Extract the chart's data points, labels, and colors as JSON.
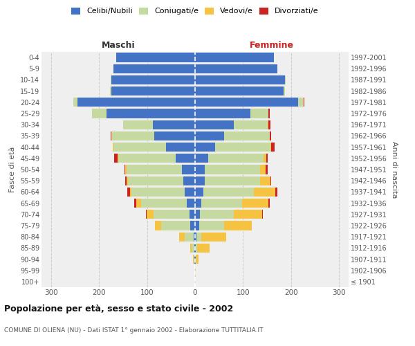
{
  "age_groups": [
    "100+",
    "95-99",
    "90-94",
    "85-89",
    "80-84",
    "75-79",
    "70-74",
    "65-69",
    "60-64",
    "55-59",
    "50-54",
    "45-49",
    "40-44",
    "35-39",
    "30-34",
    "25-29",
    "20-24",
    "15-19",
    "10-14",
    "5-9",
    "0-4"
  ],
  "birth_years": [
    "≤ 1901",
    "1902-1906",
    "1907-1911",
    "1912-1916",
    "1917-1921",
    "1922-1926",
    "1927-1931",
    "1932-1936",
    "1937-1941",
    "1942-1946",
    "1947-1951",
    "1952-1956",
    "1957-1961",
    "1962-1966",
    "1967-1971",
    "1972-1976",
    "1977-1981",
    "1982-1986",
    "1987-1991",
    "1992-1996",
    "1997-2001"
  ],
  "male_celibi": [
    0,
    0,
    1,
    2,
    3,
    10,
    12,
    18,
    22,
    25,
    28,
    40,
    60,
    85,
    88,
    185,
    245,
    175,
    175,
    170,
    165
  ],
  "male_coniugati": [
    0,
    0,
    2,
    5,
    18,
    60,
    75,
    95,
    110,
    115,
    115,
    120,
    110,
    90,
    62,
    30,
    8,
    2,
    1,
    0,
    0
  ],
  "male_vedovi": [
    0,
    0,
    1,
    3,
    12,
    14,
    14,
    9,
    4,
    3,
    2,
    2,
    1,
    0,
    0,
    0,
    0,
    0,
    0,
    0,
    0
  ],
  "male_divorziati": [
    0,
    0,
    0,
    0,
    0,
    0,
    1,
    5,
    5,
    2,
    2,
    6,
    0,
    1,
    0,
    0,
    0,
    0,
    0,
    0,
    0
  ],
  "female_celibi": [
    0,
    0,
    1,
    2,
    3,
    8,
    10,
    13,
    17,
    20,
    20,
    28,
    42,
    60,
    80,
    115,
    215,
    185,
    188,
    172,
    165
  ],
  "female_coniugati": [
    0,
    0,
    1,
    3,
    10,
    52,
    70,
    85,
    105,
    115,
    115,
    115,
    115,
    95,
    72,
    38,
    12,
    3,
    1,
    0,
    0
  ],
  "female_vedovi": [
    0,
    1,
    5,
    25,
    52,
    58,
    60,
    55,
    45,
    22,
    12,
    6,
    2,
    1,
    1,
    0,
    0,
    0,
    0,
    0,
    0
  ],
  "female_divorziati": [
    0,
    0,
    0,
    0,
    0,
    0,
    1,
    2,
    5,
    2,
    5,
    3,
    7,
    2,
    4,
    2,
    1,
    0,
    0,
    0,
    0
  ],
  "color_celibi": "#4472c4",
  "color_coniugati": "#c5d9a0",
  "color_vedovi": "#f5c242",
  "color_divorziati": "#cc2222",
  "title": "Popolazione per età, sesso e stato civile - 2002",
  "subtitle": "COMUNE DI OLIENA (NU) - Dati ISTAT 1° gennaio 2002 - Elaborazione TUTTITALIA.IT",
  "xlabel_left": "Maschi",
  "xlabel_right": "Femmine",
  "ylabel_left": "Fasce di età",
  "ylabel_right": "Anni di nascita",
  "xlim": 320,
  "bg_color": "#efefef",
  "grid_color": "#cccccc"
}
